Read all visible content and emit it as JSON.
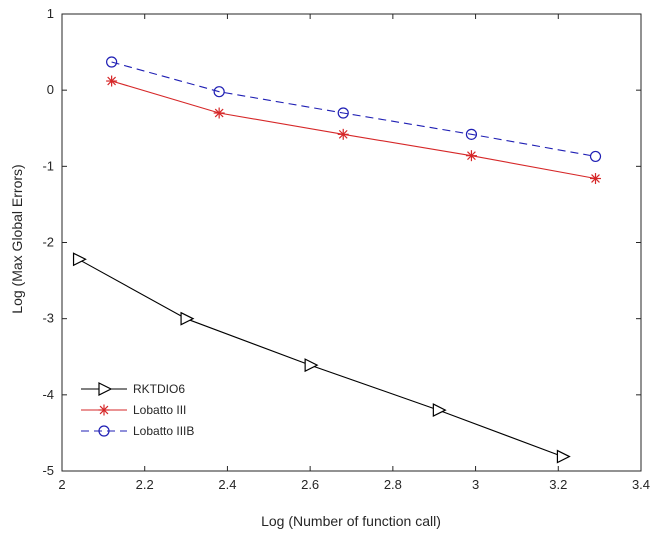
{
  "chart_data": {
    "type": "line",
    "title": "",
    "xlabel": "Log (Number of function call)",
    "ylabel": "Log (Max Global Errors)",
    "xlim": [
      2,
      3.4
    ],
    "ylim": [
      -5,
      1
    ],
    "xticks": [
      "2",
      "2.2",
      "2.4",
      "2.6",
      "2.8",
      "3",
      "3.2",
      "3.4"
    ],
    "yticks": [
      "1",
      "0",
      "-1",
      "-2",
      "-3",
      "-4",
      "-5"
    ],
    "grid": false,
    "legend_position": "bottom-left",
    "series": [
      {
        "name": "RKTDIO6",
        "color": "#000000",
        "line_style": "solid",
        "marker": "triangle-right",
        "x": [
          2.04,
          2.3,
          2.6,
          2.91,
          3.21
        ],
        "y": [
          -2.22,
          -3.0,
          -3.61,
          -4.2,
          -4.81
        ]
      },
      {
        "name": "Lobatto III",
        "color": "#d62728",
        "line_style": "solid",
        "marker": "asterisk",
        "x": [
          2.12,
          2.38,
          2.68,
          2.99,
          3.29
        ],
        "y": [
          0.12,
          -0.3,
          -0.58,
          -0.86,
          -1.16
        ]
      },
      {
        "name": "Lobatto IIIB",
        "color": "#1f1fb4",
        "line_style": "dashed",
        "marker": "circle",
        "x": [
          2.12,
          2.38,
          2.68,
          2.99,
          3.29
        ],
        "y": [
          0.37,
          -0.02,
          -0.3,
          -0.58,
          -0.87
        ]
      }
    ]
  }
}
